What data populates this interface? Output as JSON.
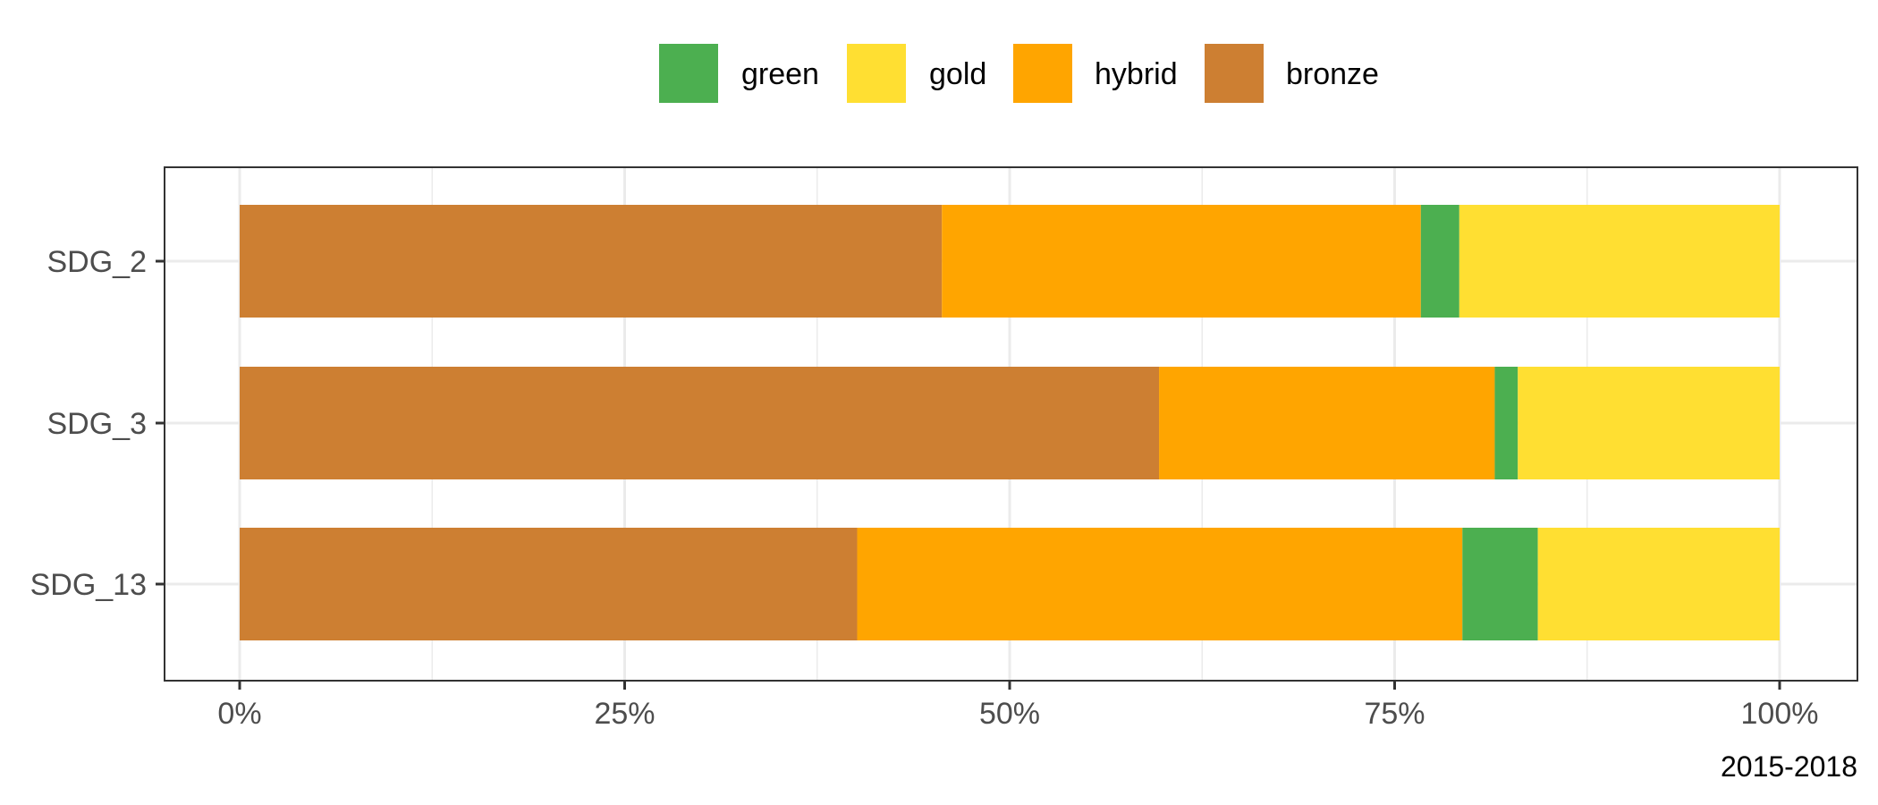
{
  "chart_data": {
    "type": "bar",
    "orientation": "horizontal",
    "stacked": true,
    "percent": true,
    "categories": [
      "SDG_2",
      "SDG_3",
      "SDG_13"
    ],
    "series": [
      {
        "name": "bronze",
        "color": "#CD7F32",
        "values": [
          45.6,
          59.7,
          40.1
        ]
      },
      {
        "name": "hybrid",
        "color": "#FFA500",
        "values": [
          31.1,
          21.8,
          39.3
        ]
      },
      {
        "name": "green",
        "color": "#4CAF50",
        "values": [
          2.5,
          1.5,
          4.9
        ]
      },
      {
        "name": "gold",
        "color": "#FFDF32",
        "values": [
          20.8,
          17.0,
          15.7
        ]
      }
    ],
    "legend": {
      "position": "top",
      "order": [
        "green",
        "gold",
        "hybrid",
        "bronze"
      ]
    },
    "x_ticks": [
      "0%",
      "25%",
      "50%",
      "75%",
      "100%"
    ],
    "xlim": [
      0,
      100
    ],
    "grid": true,
    "caption": "2015-2018"
  }
}
